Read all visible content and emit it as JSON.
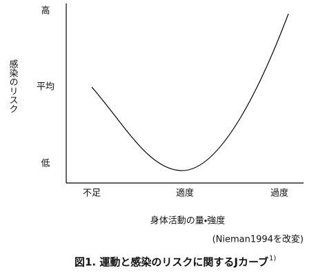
{
  "y_axis_label": "感染のリスク",
  "y_labels": [
    "高",
    "平均",
    "低"
  ],
  "x_labels": [
    "不足",
    "適度",
    "過度"
  ],
  "x_axis_label": "身体活動の量・強度",
  "source": "(Nieman1994を改変)",
  "caption": {
    "text": "図1. 運動と感染のリスクに関するJカーブ",
    "superscript": "1)"
  }
}
